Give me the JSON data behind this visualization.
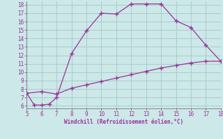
{
  "xlabel": "Windchill (Refroidissement éolien,°C)",
  "line1_x": [
    5,
    5.5,
    6,
    6.5,
    7,
    8,
    9,
    10,
    11,
    12,
    13,
    14,
    15,
    16,
    17,
    18
  ],
  "line1_y": [
    7.5,
    6.1,
    6.1,
    6.2,
    7.0,
    12.2,
    14.9,
    17.0,
    16.9,
    18.1,
    18.1,
    18.1,
    16.1,
    15.3,
    13.2,
    11.3
  ],
  "line2_x": [
    5,
    6,
    7,
    8,
    9,
    10,
    11,
    12,
    13,
    14,
    15,
    16,
    17,
    18
  ],
  "line2_y": [
    7.5,
    7.7,
    7.4,
    8.1,
    8.5,
    8.9,
    9.3,
    9.7,
    10.1,
    10.5,
    10.8,
    11.1,
    11.3,
    11.3
  ],
  "line_color": "#993399",
  "bg_color": "#cce8e8",
  "grid_color": "#aacccc",
  "xlim": [
    5,
    18
  ],
  "ylim": [
    6,
    18
  ],
  "xticks": [
    5,
    6,
    7,
    8,
    9,
    10,
    11,
    12,
    13,
    14,
    15,
    16,
    17,
    18
  ],
  "yticks": [
    6,
    7,
    8,
    9,
    10,
    11,
    12,
    13,
    14,
    15,
    16,
    17,
    18
  ]
}
